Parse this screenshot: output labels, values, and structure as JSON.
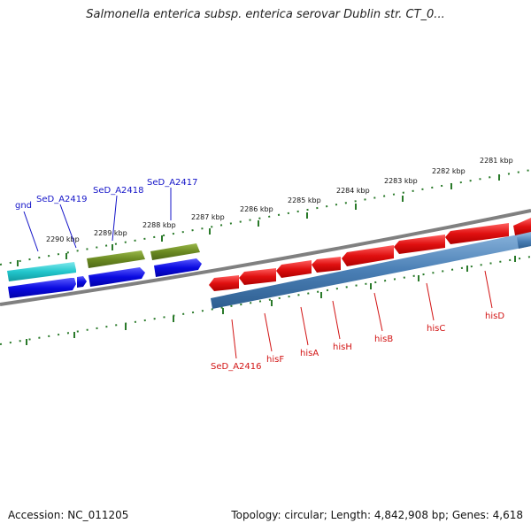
{
  "header": {
    "title": "Salmonella enterica subsp. enterica serovar Dublin str. CT_0..."
  },
  "footer": {
    "accession": "Accession: NC_011205",
    "summary": "Topology: circular; Length: 4,842,908 bp; Genes: 4,618"
  },
  "ticks": [
    "2290 kbp",
    "2289 kbp",
    "2288 kbp",
    "2287 kbp",
    "2286 kbp",
    "2285 kbp",
    "2284 kbp",
    "2283 kbp",
    "2282 kbp",
    "2281 kbp"
  ],
  "genes_top": [
    "gnd",
    "SeD_A2419",
    "SeD_A2418",
    "SeD_A2417"
  ],
  "genes_bottom": [
    "SeD_A2416",
    "hisF",
    "hisA",
    "hisH",
    "hisB",
    "hisC",
    "hisD"
  ],
  "colors": {
    "cyan_gene": "#22c6cc",
    "olive_gene": "#6b8a22",
    "blue_gene": "#0a0ae0",
    "red_gene": "#e01010",
    "steel_track": "#4a7fb5",
    "backbone": "#808080",
    "tick_green": "#2a7a2a",
    "label_blue": "#1414c8",
    "label_red": "#d21414"
  }
}
